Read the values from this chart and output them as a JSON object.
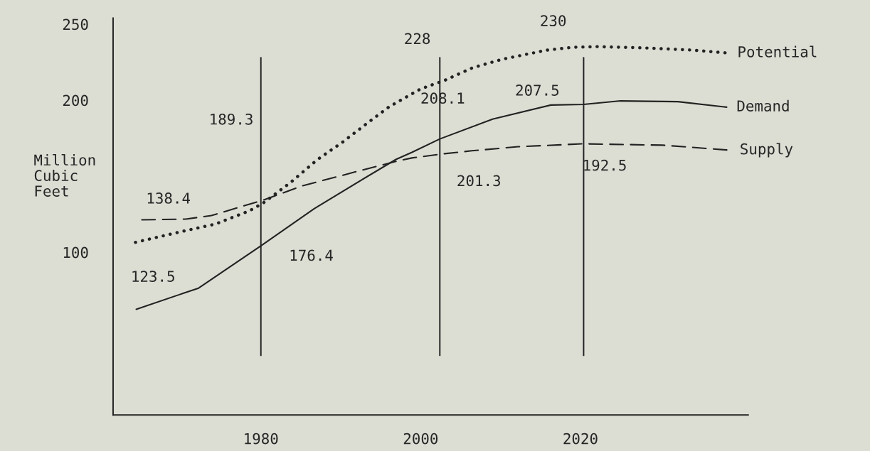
{
  "chart_data": {
    "type": "line",
    "ylabel": "Million\nCubic\nFeet",
    "x": [
      1964.4,
      1972.2,
      1980.1,
      1986.7,
      1992.5,
      1996.9,
      1998.9,
      2002.4,
      2009,
      2016.3,
      2020.4,
      2025,
      2032.2,
      2038.3
    ],
    "series": [
      {
        "name": "Potential",
        "color": "#222222",
        "line_style": "dotted",
        "x": [
          1964.3,
          1969.9,
          1974.3,
          1978.6,
          1980.3,
          1983.7,
          1987.1,
          1990.3,
          1993.4,
          1996.1,
          2000,
          2003,
          2006.5,
          2010.2,
          2015.8,
          2018.9,
          2022.1,
          2028.2,
          2034.1,
          2038.4
        ],
        "values": [
          106.5,
          113.4,
          118.5,
          127.3,
          132.4,
          145.8,
          161,
          172.7,
          185.2,
          195.8,
          207.4,
          213,
          221.3,
          226.9,
          232.9,
          234.7,
          235.2,
          234.3,
          232.9,
          231
        ]
      },
      {
        "name": "Demand",
        "color": "#222222",
        "line_style": "solid",
        "values": [
          62.5,
          76.4,
          104.6,
          128.7,
          147.2,
          161,
          165.7,
          174.5,
          187.5,
          196.8,
          197.2,
          199.5,
          199,
          195.4
        ]
      },
      {
        "name": "Supply",
        "color": "#222222",
        "line_style": "dashed",
        "x": [
          1965.1,
          1970.6,
          1973.8,
          1980.3,
          1985.1,
          1992.1,
          1996.9,
          1998.9,
          2003,
          2006.4,
          2012.2,
          2020.4,
          2030.3,
          2038.7
        ],
        "values": [
          121.3,
          121.8,
          124.1,
          134.3,
          143.5,
          153.2,
          159.7,
          162,
          164.8,
          166.7,
          169.4,
          171.3,
          170.4,
          167.1
        ]
      }
    ],
    "xlim": [
      1961.5,
      2041
    ],
    "xticks": [
      1980,
      2000,
      2020
    ],
    "ylim": [
      -7,
      254
    ],
    "yticks": [
      100,
      200,
      250
    ],
    "ref_lines": [
      {
        "axis": "x",
        "value": 1980
      },
      {
        "axis": "x",
        "value": 2002.4
      },
      {
        "axis": "x",
        "value": 2020.4
      }
    ],
    "annotations": [
      "123.5",
      "138.4",
      "189.3",
      "176.4",
      "228",
      "208.1",
      "201.3",
      "230",
      "207.5",
      "192.5"
    ],
    "grid": false,
    "legend": false,
    "marker": "none"
  }
}
